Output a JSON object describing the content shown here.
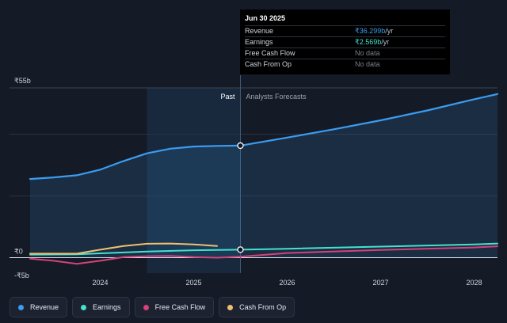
{
  "colors": {
    "background": "#151b26",
    "revenue": "#3b9cf0",
    "earnings": "#44e2cf",
    "free_cash_flow": "#d4427a",
    "cash_from_op": "#f0c070",
    "axis_text": "#cfd6e0",
    "past_band": "#1b3550"
  },
  "tooltip": {
    "date": "Jun 30 2025",
    "rows": [
      {
        "label": "Revenue",
        "value": "₹36.299b",
        "unit": " /yr"
      },
      {
        "label": "Earnings",
        "value": "₹2.569b",
        "unit": " /yr"
      },
      {
        "label": "Free Cash Flow",
        "value": "No data",
        "unit": ""
      },
      {
        "label": "Cash From Op",
        "value": "No data",
        "unit": ""
      }
    ]
  },
  "legend": [
    {
      "label": "Revenue",
      "color": "#3b9cf0"
    },
    {
      "label": "Earnings",
      "color": "#44e2cf"
    },
    {
      "label": "Free Cash Flow",
      "color": "#d4427a"
    },
    {
      "label": "Cash From Op",
      "color": "#f0c070"
    }
  ],
  "chart_data": {
    "type": "line",
    "title": "",
    "xlabel": "",
    "ylabel": "",
    "xlim": [
      2023.25,
      2028.25
    ],
    "ylim": [
      -5,
      55
    ],
    "y_tick_labels": [
      {
        "value": 55,
        "label": "₹55b"
      },
      {
        "value": 0,
        "label": "₹0"
      },
      {
        "value": -5,
        "label": "-₹5b"
      }
    ],
    "x_ticks": [
      2024,
      2025,
      2026,
      2027,
      2028
    ],
    "x_tick_labels": [
      "2024",
      "2025",
      "2026",
      "2027",
      "2028"
    ],
    "gridlines": [
      40,
      20
    ],
    "past_band": [
      2024.5,
      2025.5
    ],
    "divider_x": 2025.5,
    "past_label": "Past",
    "forecast_label": "Analysts Forecasts",
    "highlight_x": 2025.5,
    "series": [
      {
        "name": "Revenue",
        "key": "revenue",
        "area": true,
        "x": [
          2023.25,
          2023.5,
          2023.75,
          2024.0,
          2024.25,
          2024.5,
          2024.75,
          2025.0,
          2025.25,
          2025.5,
          2026.0,
          2026.5,
          2027.0,
          2027.5,
          2028.0,
          2028.25
        ],
        "y": [
          25.5,
          26.0,
          26.7,
          28.5,
          31.3,
          33.8,
          35.3,
          36.0,
          36.2,
          36.3,
          38.9,
          41.6,
          44.5,
          47.7,
          51.3,
          53.0
        ]
      },
      {
        "name": "Earnings",
        "key": "earnings",
        "area": false,
        "x": [
          2023.25,
          2023.75,
          2024.0,
          2024.5,
          2025.0,
          2025.5,
          2026.0,
          2027.0,
          2028.0,
          2028.25
        ],
        "y": [
          1.0,
          1.1,
          1.4,
          2.0,
          2.4,
          2.6,
          2.9,
          3.6,
          4.3,
          4.6
        ]
      },
      {
        "name": "Free Cash Flow",
        "key": "free_cash_flow",
        "area": false,
        "x": [
          2023.25,
          2023.5,
          2023.75,
          2024.0,
          2024.25,
          2024.5,
          2024.75,
          2025.0,
          2025.25,
          2025.5,
          2026.0,
          2027.0,
          2028.0,
          2028.25
        ],
        "y": [
          -0.3,
          -1.0,
          -2.0,
          -1.0,
          0.2,
          0.5,
          0.6,
          0.2,
          0.0,
          0.3,
          1.5,
          2.5,
          3.3,
          3.7
        ]
      },
      {
        "name": "Cash From Op",
        "key": "cash_from_op",
        "area": false,
        "x": [
          2023.25,
          2023.5,
          2023.75,
          2024.0,
          2024.25,
          2024.5,
          2024.75,
          2025.0,
          2025.25
        ],
        "y": [
          1.3,
          1.3,
          1.3,
          2.6,
          3.8,
          4.5,
          4.6,
          4.3,
          3.8
        ]
      }
    ]
  }
}
